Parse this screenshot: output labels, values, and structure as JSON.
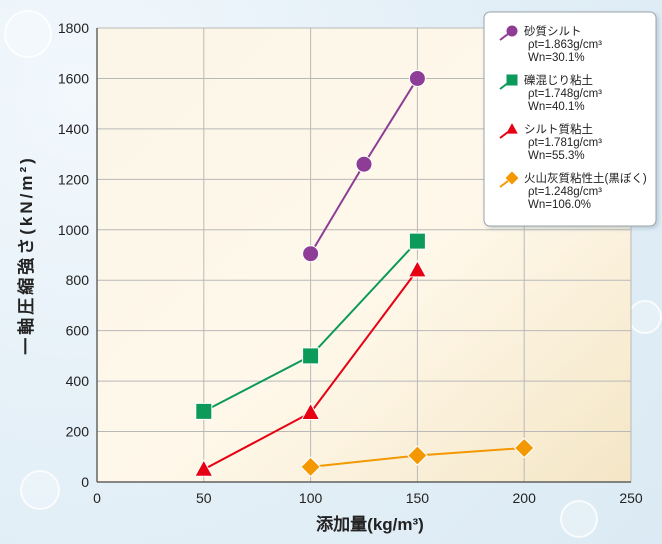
{
  "chart_data": {
    "type": "line",
    "title": "",
    "xlabel": "添加量(kg/m³)",
    "ylabel": "一軸圧縮強さ(kN/m²)",
    "xlim": [
      0,
      250
    ],
    "ylim": [
      0,
      1800
    ],
    "xticks": [
      0,
      50,
      100,
      150,
      200,
      250
    ],
    "yticks": [
      0,
      200,
      400,
      600,
      800,
      1000,
      1200,
      1400,
      1600,
      1800
    ],
    "grid": true,
    "legend_position": "top-right",
    "series": [
      {
        "name": "砂質シルト",
        "density": "ρt=1.863g/cm³",
        "water": "Wn=30.1%",
        "color": "#8e3d96",
        "marker": "circle",
        "points": [
          [
            100,
            905
          ],
          [
            125,
            1260
          ],
          [
            150,
            1600
          ]
        ]
      },
      {
        "name": "礫混じり粘土",
        "density": "ρt=1.748g/cm³",
        "water": "Wn=40.1%",
        "color": "#0c9a5a",
        "marker": "square",
        "points": [
          [
            50,
            280
          ],
          [
            100,
            500
          ],
          [
            150,
            955
          ]
        ]
      },
      {
        "name": "シルト質粘土",
        "density": "ρt=1.781g/cm³",
        "water": "Wn=55.3%",
        "color": "#e60012",
        "marker": "triangle",
        "points": [
          [
            50,
            50
          ],
          [
            100,
            275
          ],
          [
            150,
            840
          ]
        ]
      },
      {
        "name": "火山灰質粘性土(黒ぼく)",
        "density": "ρt=1.248g/cm³",
        "water": "Wn=106.0%",
        "color": "#f39800",
        "marker": "diamond",
        "points": [
          [
            100,
            60
          ],
          [
            150,
            105
          ],
          [
            200,
            135
          ]
        ]
      }
    ]
  }
}
